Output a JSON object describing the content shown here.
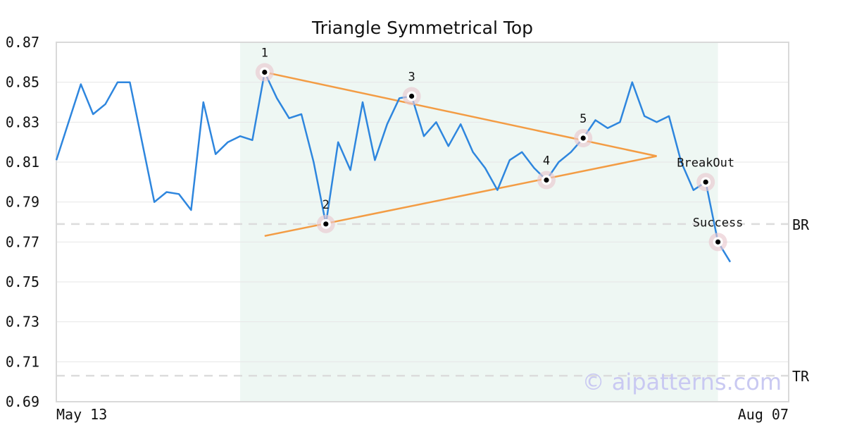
{
  "chart_data": {
    "type": "line",
    "title": "Triangle Symmetrical Top",
    "x_tick_labels": [
      "May 13",
      "Aug 07"
    ],
    "ylim": [
      0.69,
      0.87
    ],
    "y_ticks": [
      "0.87",
      "0.85",
      "0.83",
      "0.81",
      "0.79",
      "0.77",
      "0.75",
      "0.73",
      "0.71",
      "0.69"
    ],
    "grid": "horizontal",
    "series": [
      {
        "color": "#2e86de",
        "values": [
          0.811,
          0.83,
          0.849,
          0.834,
          0.839,
          0.85,
          0.85,
          0.82,
          0.79,
          0.795,
          0.794,
          0.786,
          0.84,
          0.814,
          0.82,
          0.823,
          0.821,
          0.855,
          0.842,
          0.832,
          0.834,
          0.81,
          0.779,
          0.82,
          0.806,
          0.84,
          0.811,
          0.829,
          0.842,
          0.843,
          0.823,
          0.83,
          0.818,
          0.829,
          0.815,
          0.807,
          0.796,
          0.811,
          0.815,
          0.807,
          0.801,
          0.81,
          0.815,
          0.822,
          0.831,
          0.827,
          0.83,
          0.85,
          0.833,
          0.83,
          0.833,
          0.81,
          0.796,
          0.8,
          0.77,
          0.76
        ]
      }
    ],
    "pattern_region": {
      "start_index": 15,
      "end_index": 54,
      "color": "#eef7f3"
    },
    "trendlines": [
      {
        "color": "#f39c44",
        "from": {
          "index": 17,
          "value": 0.855
        },
        "to": {
          "index": 49,
          "value": 0.813
        }
      },
      {
        "color": "#f39c44",
        "from": {
          "index": 17,
          "value": 0.773
        },
        "to": {
          "index": 49,
          "value": 0.813
        }
      }
    ],
    "reference_lines": [
      {
        "label": "BR",
        "value": 0.779
      },
      {
        "label": "TR",
        "value": 0.703
      }
    ],
    "points": [
      {
        "label": "1",
        "index": 17,
        "value": 0.855
      },
      {
        "label": "2",
        "index": 22,
        "value": 0.779
      },
      {
        "label": "3",
        "index": 29,
        "value": 0.843
      },
      {
        "label": "4",
        "index": 40,
        "value": 0.801
      },
      {
        "label": "5",
        "index": 43,
        "value": 0.822
      },
      {
        "label": "BreakOut",
        "index": 53,
        "value": 0.8
      },
      {
        "label": "Success",
        "index": 54,
        "value": 0.77
      }
    ],
    "watermark": "© aipatterns.com"
  }
}
